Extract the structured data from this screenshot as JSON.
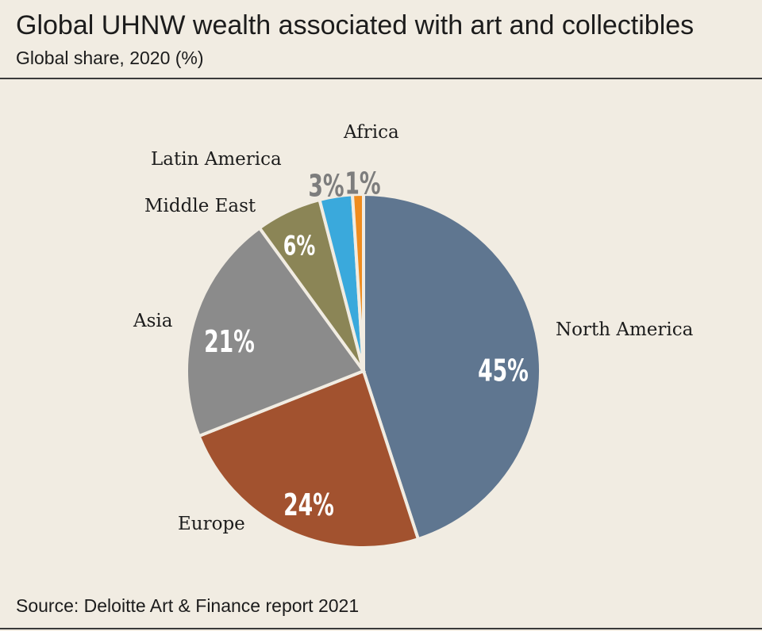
{
  "header": {
    "title": "Global UHNW wealth associated with art and collectibles",
    "subtitle": "Global share, 2020 (%)"
  },
  "footer": {
    "source": "Source: Deloitte Art & Finance report 2021"
  },
  "chart_data": {
    "type": "pie",
    "title": "Global UHNW wealth associated with art and collectibles",
    "subtitle": "Global share, 2020 (%)",
    "start": "12 o'clock",
    "direction": "clockwise",
    "slices": [
      {
        "label": "North America",
        "value": 45,
        "value_label": "45%",
        "color": "#5f7690"
      },
      {
        "label": "Europe",
        "value": 24,
        "value_label": "24%",
        "color": "#a2522f"
      },
      {
        "label": "Asia",
        "value": 21,
        "value_label": "21%",
        "color": "#8b8b8b"
      },
      {
        "label": "Middle East",
        "value": 6,
        "value_label": "6%",
        "color": "#8b8556"
      },
      {
        "label": "Latin America",
        "value": 3,
        "value_label": "3%",
        "color": "#3aa9dc"
      },
      {
        "label": "Africa",
        "value": 1,
        "value_label": "1%",
        "color": "#f08c1e"
      }
    ],
    "value_label_colors": {
      "inside": "#ffffff",
      "outside": "#7d7d7d"
    }
  }
}
